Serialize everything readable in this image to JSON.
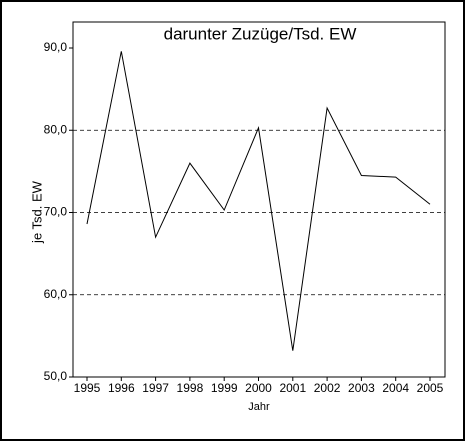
{
  "chart_data": {
    "type": "line",
    "title": "darunter Zuzüge/Tsd. EW",
    "y_label": "je Tsd. EW",
    "x_label": "Jahr",
    "categories": [
      "1995",
      "1996",
      "1997",
      "1998",
      "1999",
      "2000",
      "2001",
      "2002",
      "2003",
      "2004",
      "2005"
    ],
    "values": [
      68.6,
      89.6,
      67.0,
      76.0,
      70.3,
      80.3,
      53.2,
      82.7,
      74.5,
      74.3,
      71.0
    ],
    "color": "#000000",
    "ylim": [
      50,
      90
    ],
    "yticks": [
      {
        "value": 50,
        "label": "50,0"
      },
      {
        "value": 60,
        "label": "60,0"
      },
      {
        "value": 70,
        "label": "70,0"
      },
      {
        "value": 80,
        "label": "80,0"
      },
      {
        "value": 90,
        "label": "90,0"
      }
    ],
    "grid": true
  }
}
